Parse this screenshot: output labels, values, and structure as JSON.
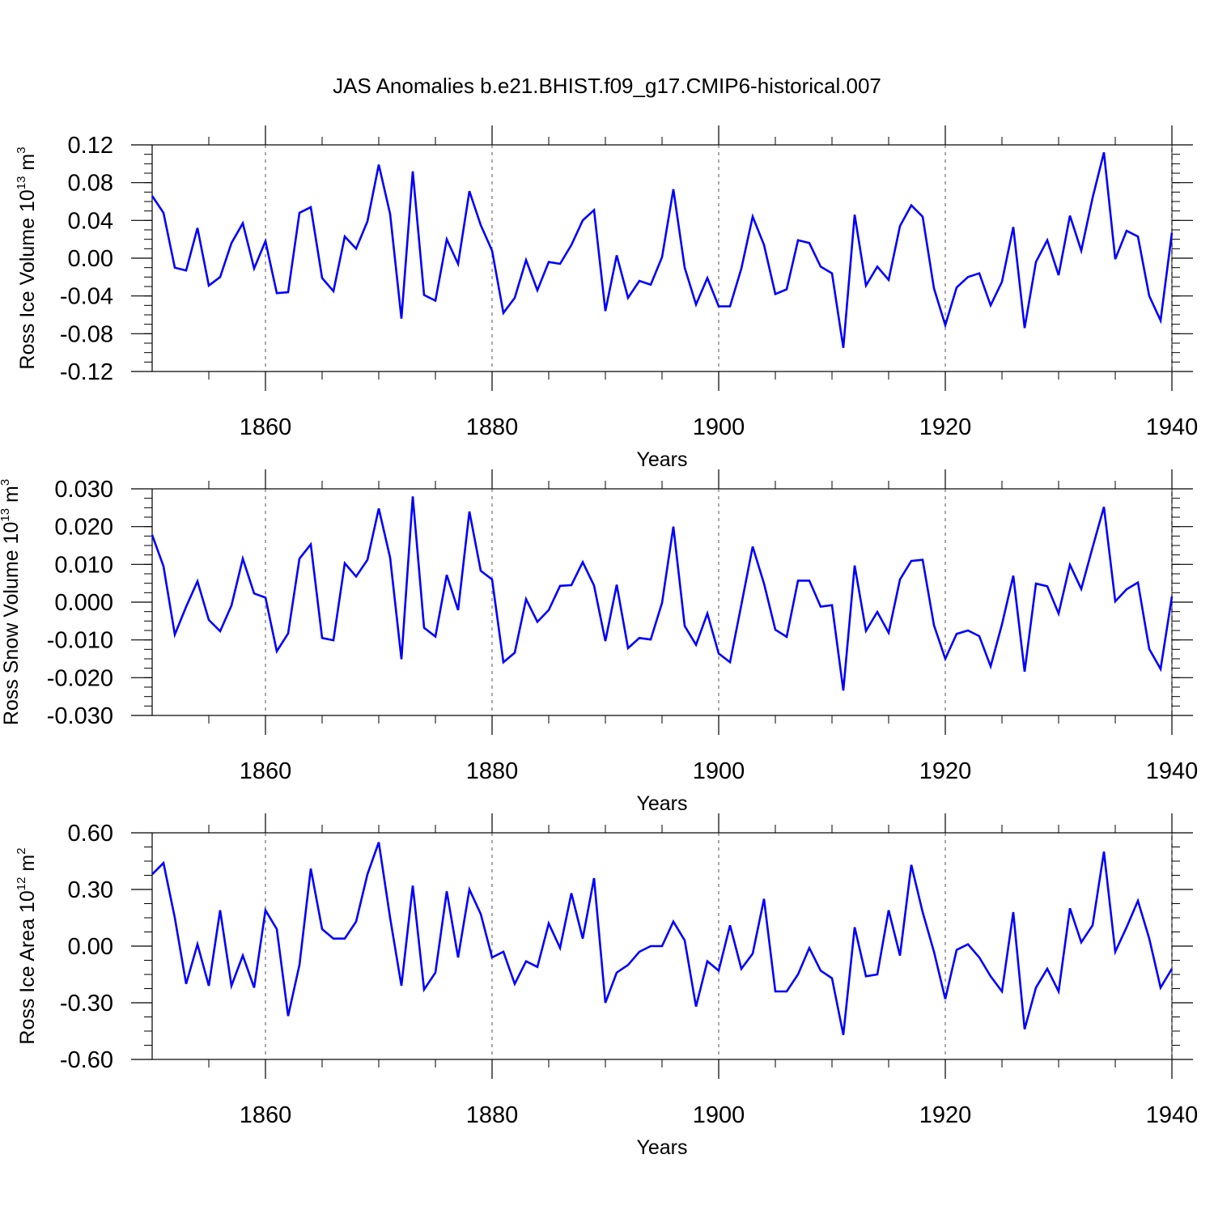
{
  "chart_data": [
    {
      "type": "line",
      "title": "JAS Anomalies b.e21.BHIST.f09_g17.CMIP6-historical.007",
      "xlabel": "Years",
      "ylabel": {
        "main": "Ross Ice Volume 10",
        "exp": "13",
        "unit": " m",
        "unit_exp": "3"
      },
      "xlim": [
        1850,
        1940
      ],
      "ylim": [
        -0.12,
        0.12
      ],
      "x_ticks": [
        1860,
        1880,
        1900,
        1920,
        1940
      ],
      "x_tick_labels": [
        "1860",
        "1880",
        "1900",
        "1920",
        "1940"
      ],
      "y_ticks": [
        0.12,
        0.08,
        0.04,
        0.0,
        -0.04,
        -0.08,
        -0.12
      ],
      "y_tick_labels": [
        "0.12",
        "0.08",
        "0.04",
        "0.00",
        "-0.04",
        "-0.08",
        "-0.12"
      ],
      "grid": "vertical dashed at major x ticks",
      "series": [
        {
          "name": "Ross Ice Volume",
          "color": "#0000ff",
          "x_start": 1850,
          "values": [
            0.066,
            0.048,
            -0.01,
            -0.013,
            0.032,
            -0.029,
            -0.02,
            0.016,
            0.037,
            -0.011,
            0.018,
            -0.037,
            -0.036,
            0.048,
            0.054,
            -0.021,
            -0.035,
            0.023,
            0.01,
            0.039,
            0.099,
            0.047,
            -0.064,
            0.092,
            -0.039,
            -0.045,
            0.02,
            -0.006,
            0.071,
            0.035,
            0.008,
            -0.058,
            -0.042,
            -0.002,
            -0.034,
            -0.004,
            -0.006,
            0.014,
            0.04,
            0.051,
            -0.056,
            0.003,
            -0.042,
            -0.024,
            -0.028,
            0.001,
            0.073,
            -0.01,
            -0.049,
            -0.021,
            -0.051,
            -0.051,
            -0.011,
            0.044,
            0.014,
            -0.038,
            -0.033,
            0.019,
            0.016,
            -0.009,
            -0.016,
            -0.095,
            0.046,
            -0.029,
            -0.009,
            -0.023,
            0.034,
            0.056,
            0.044,
            -0.032,
            -0.071,
            -0.031,
            -0.02,
            -0.016,
            -0.05,
            -0.025,
            0.033,
            -0.074,
            -0.004,
            0.019,
            -0.018,
            0.045,
            0.008,
            0.064,
            0.112,
            -0.001,
            0.029,
            0.023,
            -0.04,
            -0.066,
            0.027
          ]
        }
      ]
    },
    {
      "type": "line",
      "title": "",
      "xlabel": "Years",
      "ylabel": {
        "main": "Ross Snow Volume 10",
        "exp": "13",
        "unit": " m",
        "unit_exp": "3"
      },
      "xlim": [
        1850,
        1940
      ],
      "ylim": [
        -0.03,
        0.03
      ],
      "x_ticks": [
        1860,
        1880,
        1900,
        1920,
        1940
      ],
      "x_tick_labels": [
        "1860",
        "1880",
        "1900",
        "1920",
        "1940"
      ],
      "y_ticks": [
        0.03,
        0.02,
        0.01,
        0.0,
        -0.01,
        -0.02,
        -0.03
      ],
      "y_tick_labels": [
        "0.030",
        "0.020",
        "0.010",
        "0.000",
        "-0.010",
        "-0.020",
        "-0.030"
      ],
      "grid": "vertical dashed at major x ticks",
      "series": [
        {
          "name": "Ross Snow Volume",
          "color": "#0000ff",
          "x_start": 1850,
          "values": [
            0.0178,
            0.0095,
            -0.0086,
            -0.0012,
            0.0055,
            -0.0047,
            -0.0077,
            -0.0009,
            0.0115,
            0.0023,
            0.0012,
            -0.013,
            -0.0083,
            0.0115,
            0.0153,
            -0.0095,
            -0.0101,
            0.0103,
            0.0068,
            0.0112,
            0.0248,
            0.0118,
            -0.0151,
            0.028,
            -0.0068,
            -0.0091,
            0.0072,
            -0.0021,
            0.024,
            0.0083,
            0.006,
            -0.0159,
            -0.0134,
            0.0008,
            -0.0052,
            -0.0021,
            0.0043,
            0.0045,
            0.0106,
            0.0044,
            -0.0103,
            0.0046,
            -0.0122,
            -0.0095,
            -0.0099,
            -0.0002,
            0.02,
            -0.0063,
            -0.0113,
            -0.003,
            -0.0136,
            -0.0159,
            -0.0007,
            0.0147,
            0.0049,
            -0.0073,
            -0.0092,
            0.0057,
            0.0057,
            -0.0012,
            -0.0008,
            -0.0234,
            0.0097,
            -0.0076,
            -0.0026,
            -0.0081,
            0.006,
            0.0109,
            0.0112,
            -0.0061,
            -0.015,
            -0.0084,
            -0.0075,
            -0.009,
            -0.017,
            -0.0059,
            0.007,
            -0.0184,
            0.0049,
            0.0042,
            -0.003,
            0.0099,
            0.0035,
            0.0145,
            0.0252,
            0.0002,
            0.0034,
            0.0052,
            -0.0124,
            -0.0177,
            0.0015
          ]
        }
      ]
    },
    {
      "type": "line",
      "title": "",
      "xlabel": "Years",
      "ylabel": {
        "main": "Ross Ice Area 10",
        "exp": "12",
        "unit": " m",
        "unit_exp": "2"
      },
      "xlim": [
        1850,
        1940
      ],
      "ylim": [
        -0.6,
        0.6
      ],
      "x_ticks": [
        1860,
        1880,
        1900,
        1920,
        1940
      ],
      "x_tick_labels": [
        "1860",
        "1880",
        "1900",
        "1920",
        "1940"
      ],
      "y_ticks": [
        0.6,
        0.3,
        0.0,
        -0.3,
        -0.6
      ],
      "y_tick_labels": [
        "0.60",
        "0.30",
        "0.00",
        "-0.30",
        "-0.60"
      ],
      "grid": "vertical dashed at major x ticks",
      "series": [
        {
          "name": "Ross Ice Area",
          "color": "#0000ff",
          "x_start": 1850,
          "values": [
            0.38,
            0.44,
            0.15,
            -0.2,
            0.01,
            -0.21,
            0.19,
            -0.21,
            -0.05,
            -0.22,
            0.19,
            0.09,
            -0.37,
            -0.1,
            0.41,
            0.09,
            0.04,
            0.04,
            0.13,
            0.38,
            0.55,
            0.15,
            -0.21,
            0.32,
            -0.23,
            -0.14,
            0.29,
            -0.06,
            0.3,
            0.17,
            -0.06,
            -0.03,
            -0.2,
            -0.08,
            -0.11,
            0.12,
            -0.01,
            0.28,
            0.04,
            0.36,
            -0.3,
            -0.14,
            -0.1,
            -0.03,
            0.0,
            0.0,
            0.13,
            0.03,
            -0.32,
            -0.08,
            -0.13,
            0.11,
            -0.12,
            -0.04,
            0.25,
            -0.24,
            -0.24,
            -0.15,
            -0.01,
            -0.13,
            -0.17,
            -0.47,
            0.1,
            -0.16,
            -0.15,
            0.19,
            -0.05,
            0.43,
            0.18,
            -0.03,
            -0.28,
            -0.02,
            0.01,
            -0.06,
            -0.16,
            -0.24,
            0.18,
            -0.44,
            -0.22,
            -0.12,
            -0.24,
            0.2,
            0.02,
            0.11,
            0.5,
            -0.03,
            0.1,
            0.24,
            0.04,
            -0.22,
            -0.12
          ]
        }
      ]
    }
  ]
}
